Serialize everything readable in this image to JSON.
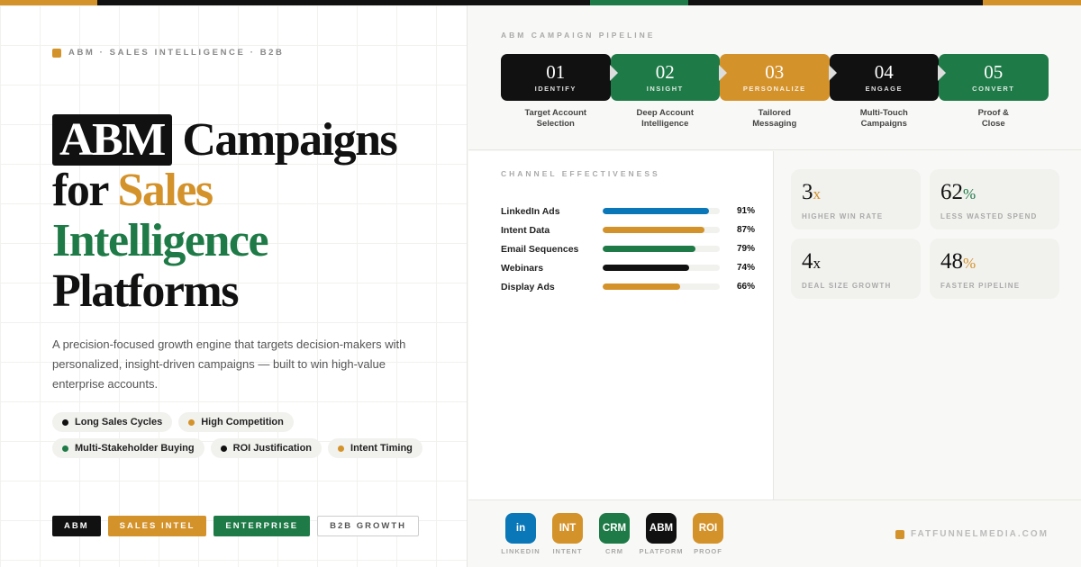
{
  "colors": {
    "orange": "#d4922a",
    "green": "#1e7a46",
    "black": "#111111",
    "blue": "#0a77b8"
  },
  "hero": {
    "eyebrow": "ABM · SALES INTELLIGENCE · B2B",
    "title": {
      "highlight": "ABM",
      "w1": " Campaigns",
      "w2": "for ",
      "w3": "Sales",
      "w4": "Intelligence",
      "w5": "Platforms"
    },
    "description": "A precision-focused growth engine that targets decision-makers with personalized, insight-driven campaigns — built to win high-value enterprise accounts.",
    "chips": [
      {
        "label": "Long Sales Cycles",
        "color": "#111111"
      },
      {
        "label": "High Competition",
        "color": "#d4922a"
      },
      {
        "label": "Multi-Stakeholder Buying",
        "color": "#1e7a46"
      },
      {
        "label": "ROI Justification",
        "color": "#111111"
      },
      {
        "label": "Intent Timing",
        "color": "#d4922a"
      }
    ],
    "tags": [
      "ABM",
      "SALES INTEL",
      "ENTERPRISE",
      "B2B GROWTH"
    ]
  },
  "pipeline": {
    "label": "ABM CAMPAIGN PIPELINE",
    "steps": [
      {
        "num": "01",
        "name": "IDENTIFY",
        "desc": "Target Account\nSelection",
        "color": "#111111"
      },
      {
        "num": "02",
        "name": "INSIGHT",
        "desc": "Deep Account\nIntelligence",
        "color": "#1e7a46"
      },
      {
        "num": "03",
        "name": "PERSONALIZE",
        "desc": "Tailored\nMessaging",
        "color": "#d4922a"
      },
      {
        "num": "04",
        "name": "ENGAGE",
        "desc": "Multi-Touch\nCampaigns",
        "color": "#111111"
      },
      {
        "num": "05",
        "name": "CONVERT",
        "desc": "Proof &\nClose",
        "color": "#1e7a46"
      }
    ]
  },
  "channels": {
    "label": "CHANNEL EFFECTIVENESS",
    "items": [
      {
        "name": "LinkedIn Ads",
        "value": 91,
        "pct": "91%",
        "color": "#0a77b8"
      },
      {
        "name": "Intent Data",
        "value": 87,
        "pct": "87%",
        "color": "#d4922a"
      },
      {
        "name": "Email Sequences",
        "value": 79,
        "pct": "79%",
        "color": "#1e7a46"
      },
      {
        "name": "Webinars",
        "value": 74,
        "pct": "74%",
        "color": "#111111"
      },
      {
        "name": "Display Ads",
        "value": 66,
        "pct": "66%",
        "color": "#d4922a"
      }
    ]
  },
  "stats": [
    {
      "value": "3",
      "unit": "x",
      "label": "HIGHER WIN RATE",
      "unit_color": "#d4922a"
    },
    {
      "value": "62",
      "unit": "%",
      "label": "LESS WASTED SPEND",
      "unit_color": "#1e7a46"
    },
    {
      "value": "4",
      "unit": "x",
      "label": "DEAL SIZE GROWTH",
      "unit_color": "#111111"
    },
    {
      "value": "48",
      "unit": "%",
      "label": "FASTER PIPELINE",
      "unit_color": "#d4922a"
    }
  ],
  "footer": {
    "icons": [
      {
        "text": "in",
        "label": "LINKEDIN",
        "color": "#0a77b8"
      },
      {
        "text": "INT",
        "label": "INTENT",
        "color": "#d4922a"
      },
      {
        "text": "CRM",
        "label": "CRM",
        "color": "#1e7a46"
      },
      {
        "text": "ABM",
        "label": "PLATFORM",
        "color": "#111111"
      },
      {
        "text": "ROI",
        "label": "PROOF",
        "color": "#d4922a"
      }
    ],
    "site": "FATFUNNELMEDIA.COM"
  }
}
